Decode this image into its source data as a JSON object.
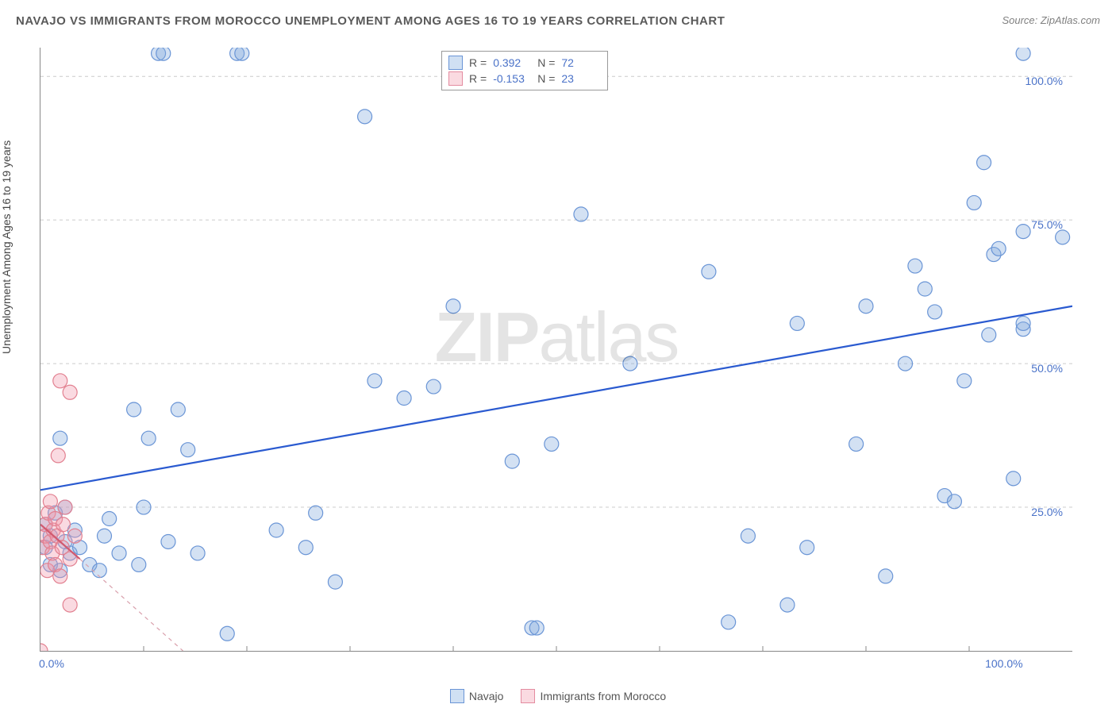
{
  "title": "NAVAJO VS IMMIGRANTS FROM MOROCCO UNEMPLOYMENT AMONG AGES 16 TO 19 YEARS CORRELATION CHART",
  "source": "Source: ZipAtlas.com",
  "watermark": "ZIPatlas",
  "y_axis_label": "Unemployment Among Ages 16 to 19 years",
  "chart": {
    "type": "scatter",
    "xlim": [
      0,
      105
    ],
    "ylim": [
      0,
      105
    ],
    "grid_y": [
      25,
      50,
      75,
      100
    ],
    "grid_color": "#cccccc",
    "background_color": "#ffffff",
    "xtick_labels": [
      {
        "v": 0,
        "label": "0.0%"
      },
      {
        "v": 100,
        "label": "100.0%"
      }
    ],
    "ytick_labels": [
      {
        "v": 25,
        "label": "25.0%"
      },
      {
        "v": 50,
        "label": "50.0%"
      },
      {
        "v": 75,
        "label": "75.0%"
      },
      {
        "v": 100,
        "label": "100.0%"
      }
    ],
    "series": [
      {
        "name": "Navajo",
        "color_fill": "rgba(130,170,220,0.35)",
        "color_stroke": "#6a95d6",
        "marker_radius": 9,
        "R": "0.392",
        "N": "72",
        "trend": {
          "x1": 0,
          "y1": 28,
          "x2": 105,
          "y2": 60,
          "stroke": "#2a5ad0",
          "width": 2.2
        },
        "points": [
          [
            0.5,
            18
          ],
          [
            0.5,
            22
          ],
          [
            1,
            15
          ],
          [
            1,
            20
          ],
          [
            1.5,
            24
          ],
          [
            2,
            14
          ],
          [
            2,
            37
          ],
          [
            2.5,
            19
          ],
          [
            2.5,
            25
          ],
          [
            3,
            17
          ],
          [
            3.5,
            21
          ],
          [
            4,
            18
          ],
          [
            5,
            15
          ],
          [
            6,
            14
          ],
          [
            6.5,
            20
          ],
          [
            7,
            23
          ],
          [
            8,
            17
          ],
          [
            9.5,
            42
          ],
          [
            10,
            15
          ],
          [
            10.5,
            25
          ],
          [
            11,
            37
          ],
          [
            12,
            104
          ],
          [
            12.5,
            104
          ],
          [
            13,
            19
          ],
          [
            14,
            42
          ],
          [
            15,
            35
          ],
          [
            16,
            17
          ],
          [
            19,
            3
          ],
          [
            20,
            104
          ],
          [
            20.5,
            104
          ],
          [
            24,
            21
          ],
          [
            27,
            18
          ],
          [
            28,
            24
          ],
          [
            30,
            12
          ],
          [
            33,
            93
          ],
          [
            34,
            47
          ],
          [
            37,
            44
          ],
          [
            40,
            46
          ],
          [
            42,
            60
          ],
          [
            48,
            33
          ],
          [
            50,
            4
          ],
          [
            50.5,
            4
          ],
          [
            52,
            36
          ],
          [
            55,
            76
          ],
          [
            60,
            50
          ],
          [
            68,
            66
          ],
          [
            70,
            5
          ],
          [
            72,
            20
          ],
          [
            76,
            8
          ],
          [
            77,
            57
          ],
          [
            78,
            18
          ],
          [
            83,
            36
          ],
          [
            84,
            60
          ],
          [
            86,
            13
          ],
          [
            88,
            50
          ],
          [
            89,
            67
          ],
          [
            90,
            63
          ],
          [
            91,
            59
          ],
          [
            92,
            27
          ],
          [
            93,
            26
          ],
          [
            94,
            47
          ],
          [
            95,
            78
          ],
          [
            96,
            85
          ],
          [
            96.5,
            55
          ],
          [
            97,
            69
          ],
          [
            97.5,
            70
          ],
          [
            99,
            30
          ],
          [
            100,
            104
          ],
          [
            100,
            73
          ],
          [
            100,
            56
          ],
          [
            100,
            57
          ],
          [
            104,
            72
          ]
        ]
      },
      {
        "name": "Immigrants from Morocco",
        "color_fill": "rgba(240,150,170,0.35)",
        "color_stroke": "#e28090",
        "marker_radius": 9,
        "R": "-0.153",
        "N": "23",
        "trend": {
          "x1": 0,
          "y1": 22,
          "x2": 4,
          "y2": 16,
          "stroke": "#d05a70",
          "width": 2.2
        },
        "trend_ext": {
          "x1": 4,
          "y1": 16,
          "x2": 14.5,
          "y2": 0,
          "stroke": "#d9a0ac",
          "width": 1.2,
          "dash": "5 5"
        },
        "points": [
          [
            0,
            0
          ],
          [
            0.2,
            18
          ],
          [
            0.5,
            22
          ],
          [
            0.5,
            20
          ],
          [
            0.7,
            14
          ],
          [
            0.8,
            24
          ],
          [
            1,
            19
          ],
          [
            1,
            26
          ],
          [
            1.2,
            17
          ],
          [
            1.3,
            21
          ],
          [
            1.5,
            15
          ],
          [
            1.5,
            23
          ],
          [
            1.7,
            20
          ],
          [
            1.8,
            34
          ],
          [
            2,
            13
          ],
          [
            2,
            47
          ],
          [
            2.2,
            18
          ],
          [
            2.3,
            22
          ],
          [
            2.5,
            25
          ],
          [
            3,
            45
          ],
          [
            3,
            16
          ],
          [
            3,
            8
          ],
          [
            3.5,
            20
          ]
        ]
      }
    ]
  },
  "stats_box": {
    "rows": [
      {
        "swatch": "blue",
        "R_label": "R =",
        "R": "0.392",
        "N_label": "N =",
        "N": "72"
      },
      {
        "swatch": "pink",
        "R_label": "R =",
        "R": "-0.153",
        "N_label": "N =",
        "N": "23"
      }
    ]
  },
  "bottom_legend": [
    {
      "swatch": "blue",
      "label": "Navajo"
    },
    {
      "swatch": "pink",
      "label": "Immigrants from Morocco"
    }
  ]
}
